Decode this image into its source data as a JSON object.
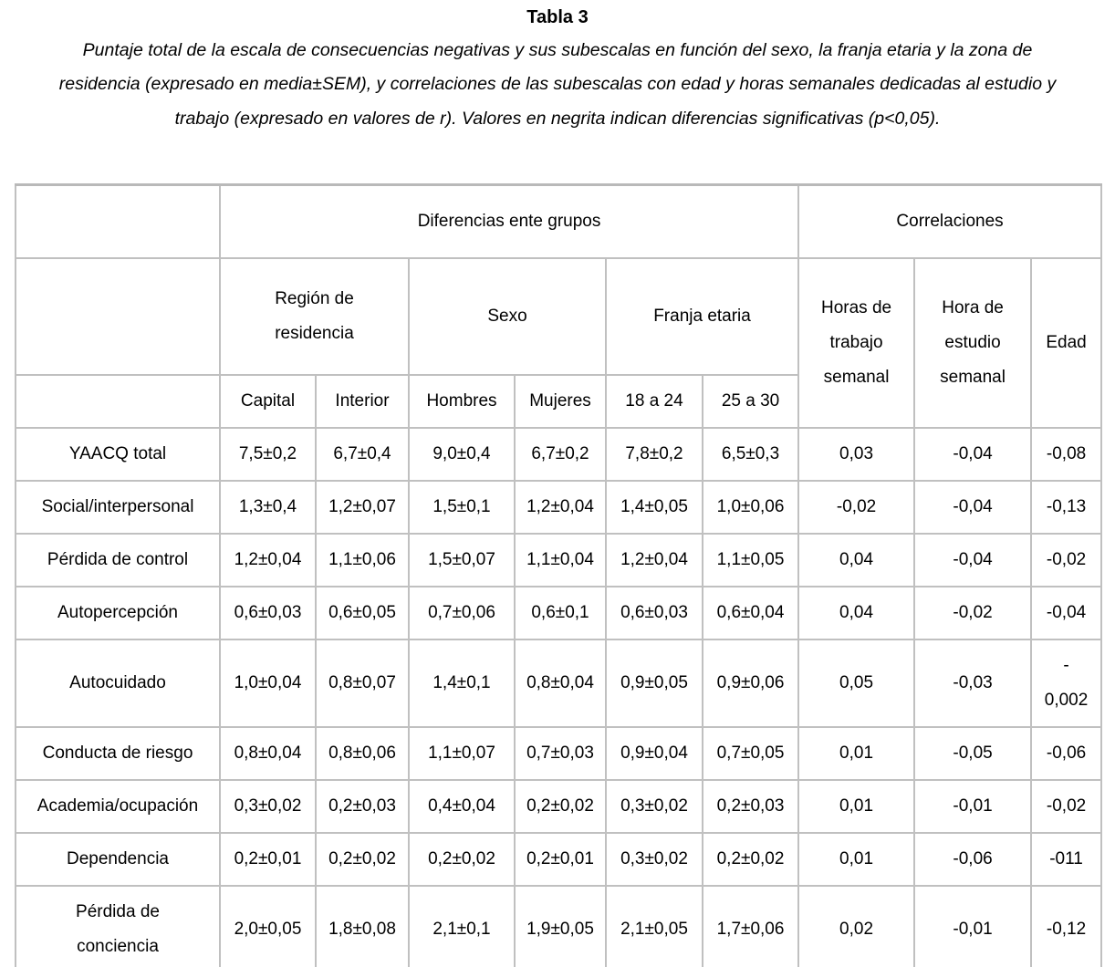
{
  "page": {
    "title": "Tabla 3",
    "caption": "Puntaje total de la escala de consecuencias negativas y sus subescalas en función del sexo, la franja etaria y la zona de residencia (expresado en media±SEM), y correlaciones de las subescalas con edad y horas semanales dedicadas al estudio y trabajo (expresado en valores de r). Valores en negrita indican diferencias significativas (p<0,05)."
  },
  "table": {
    "group_headers": [
      {
        "label": "Diferencias ente grupos",
        "span": 6
      },
      {
        "label": "Correlaciones",
        "span": 3
      }
    ],
    "subgroup_headers": [
      {
        "label": "Región de\nresidencia",
        "span": 2
      },
      {
        "label": "Sexo",
        "span": 2
      },
      {
        "label": "Franja etaria",
        "span": 2
      }
    ],
    "correlation_headers": [
      {
        "label": "Horas de\ntrabajo\nsemanal"
      },
      {
        "label": "Hora de\nestudio\nsemanal"
      },
      {
        "label": "Edad"
      }
    ],
    "column_headers": [
      "Capital",
      "Interior",
      "Hombres",
      "Mujeres",
      "18 a 24",
      "25 a 30"
    ],
    "rows": [
      {
        "label": "YAACQ total",
        "cells": [
          {
            "text": "7,5±0,2",
            "bold": false
          },
          {
            "text": "6,7±0,4",
            "bold": false
          },
          {
            "text": "9,0±0,4",
            "bold": true
          },
          {
            "text": "6,7±0,2",
            "bold": true
          },
          {
            "text": "7,8±0,2",
            "bold": true
          },
          {
            "text": "6,5±0,3",
            "bold": true
          },
          {
            "text": "0,03",
            "bold": false
          },
          {
            "text": "-0,04",
            "bold": false
          },
          {
            "text": "-0,08",
            "bold": true
          }
        ]
      },
      {
        "label": "Social/interpersonal",
        "cells": [
          {
            "text": "1,3±0,4",
            "bold": false
          },
          {
            "text": "1,2±0,07",
            "bold": false
          },
          {
            "text": "1,5±0,1",
            "bold": true
          },
          {
            "text": "1,2±0,04",
            "bold": true
          },
          {
            "text": "1,4±0,05",
            "bold": true
          },
          {
            "text": "1,0±0,06",
            "bold": true
          },
          {
            "text": "-0,02",
            "bold": false
          },
          {
            "text": "-0,04",
            "bold": false
          },
          {
            "text": "-0,13",
            "bold": true
          }
        ]
      },
      {
        "label": "Pérdida de control",
        "cells": [
          {
            "text": "1,2±0,04",
            "bold": false
          },
          {
            "text": "1,1±0,06",
            "bold": false
          },
          {
            "text": "1,5±0,07",
            "bold": true
          },
          {
            "text": "1,1±0,04",
            "bold": true
          },
          {
            "text": "1,2±0,04",
            "bold": false
          },
          {
            "text": "1,1±0,05",
            "bold": false
          },
          {
            "text": "0,04",
            "bold": false
          },
          {
            "text": "-0,04",
            "bold": false
          },
          {
            "text": "-0,02",
            "bold": false
          }
        ]
      },
      {
        "label": "Autopercepción",
        "cells": [
          {
            "text": "0,6±0,03",
            "bold": false
          },
          {
            "text": "0,6±0,05",
            "bold": false
          },
          {
            "text": "0,7±0,06",
            "bold": false
          },
          {
            "text": "0,6±0,1",
            "bold": false
          },
          {
            "text": "0,6±0,03",
            "bold": false
          },
          {
            "text": "0,6±0,04",
            "bold": false
          },
          {
            "text": "0,04",
            "bold": false
          },
          {
            "text": "-0,02",
            "bold": false
          },
          {
            "text": "-0,04",
            "bold": false
          }
        ]
      },
      {
        "label": "Autocuidado",
        "cells": [
          {
            "text": "1,0±0,04",
            "bold": true
          },
          {
            "text": "0,8±0,07",
            "bold": true
          },
          {
            "text": "1,4±0,1",
            "bold": true
          },
          {
            "text": "0,8±0,04",
            "bold": true
          },
          {
            "text": "0,9±0,05",
            "bold": false
          },
          {
            "text": "0,9±0,06",
            "bold": false
          },
          {
            "text": "0,05",
            "bold": true
          },
          {
            "text": "-0,03",
            "bold": false
          },
          {
            "text": "-\n0,002",
            "bold": false
          }
        ]
      },
      {
        "label": "Conducta de riesgo",
        "cells": [
          {
            "text": "0,8±0,04",
            "bold": false
          },
          {
            "text": "0,8±0,06",
            "bold": false
          },
          {
            "text": "1,1±0,07",
            "bold": true
          },
          {
            "text": "0,7±0,03",
            "bold": true
          },
          {
            "text": "0,9±0,04",
            "bold": true
          },
          {
            "text": "0,7±0,05",
            "bold": true
          },
          {
            "text": "0,01",
            "bold": false
          },
          {
            "text": "-0,05",
            "bold": true
          },
          {
            "text": "-0,06",
            "bold": true
          }
        ]
      },
      {
        "label": "Academia/ocupación",
        "cells": [
          {
            "text": "0,3±0,02",
            "bold": false
          },
          {
            "text": "0,2±0,03",
            "bold": false
          },
          {
            "text": "0,4±0,04",
            "bold": true
          },
          {
            "text": "0,2±0,02",
            "bold": true
          },
          {
            "text": "0,3±0,02",
            "bold": false
          },
          {
            "text": "0,2±0,03",
            "bold": false
          },
          {
            "text": "0,01",
            "bold": false
          },
          {
            "text": "-0,01",
            "bold": false
          },
          {
            "text": "-0,02",
            "bold": false
          }
        ]
      },
      {
        "label": "Dependencia",
        "cells": [
          {
            "text": "0,2±0,01",
            "bold": false
          },
          {
            "text": "0,2±0,02",
            "bold": false
          },
          {
            "text": "0,2±0,02",
            "bold": false
          },
          {
            "text": "0,2±0,01",
            "bold": false
          },
          {
            "text": "0,3±0,02",
            "bold": true
          },
          {
            "text": "0,2±0,02",
            "bold": true
          },
          {
            "text": "0,01",
            "bold": false
          },
          {
            "text": "-0,06",
            "bold": true
          },
          {
            "text": "-011",
            "bold": true
          }
        ]
      },
      {
        "label": "Pérdida de\nconciencia",
        "cells": [
          {
            "text": "2,0±0,05",
            "bold": false
          },
          {
            "text": "1,8±0,08",
            "bold": false
          },
          {
            "text": "2,1±0,1",
            "bold": true
          },
          {
            "text": "1,9±0,05",
            "bold": true
          },
          {
            "text": "2,1±0,05",
            "bold": true
          },
          {
            "text": "1,7±0,06",
            "bold": true
          },
          {
            "text": "0,02",
            "bold": false
          },
          {
            "text": "-0,01",
            "bold": false
          },
          {
            "text": "-0,12",
            "bold": true
          }
        ]
      }
    ]
  }
}
